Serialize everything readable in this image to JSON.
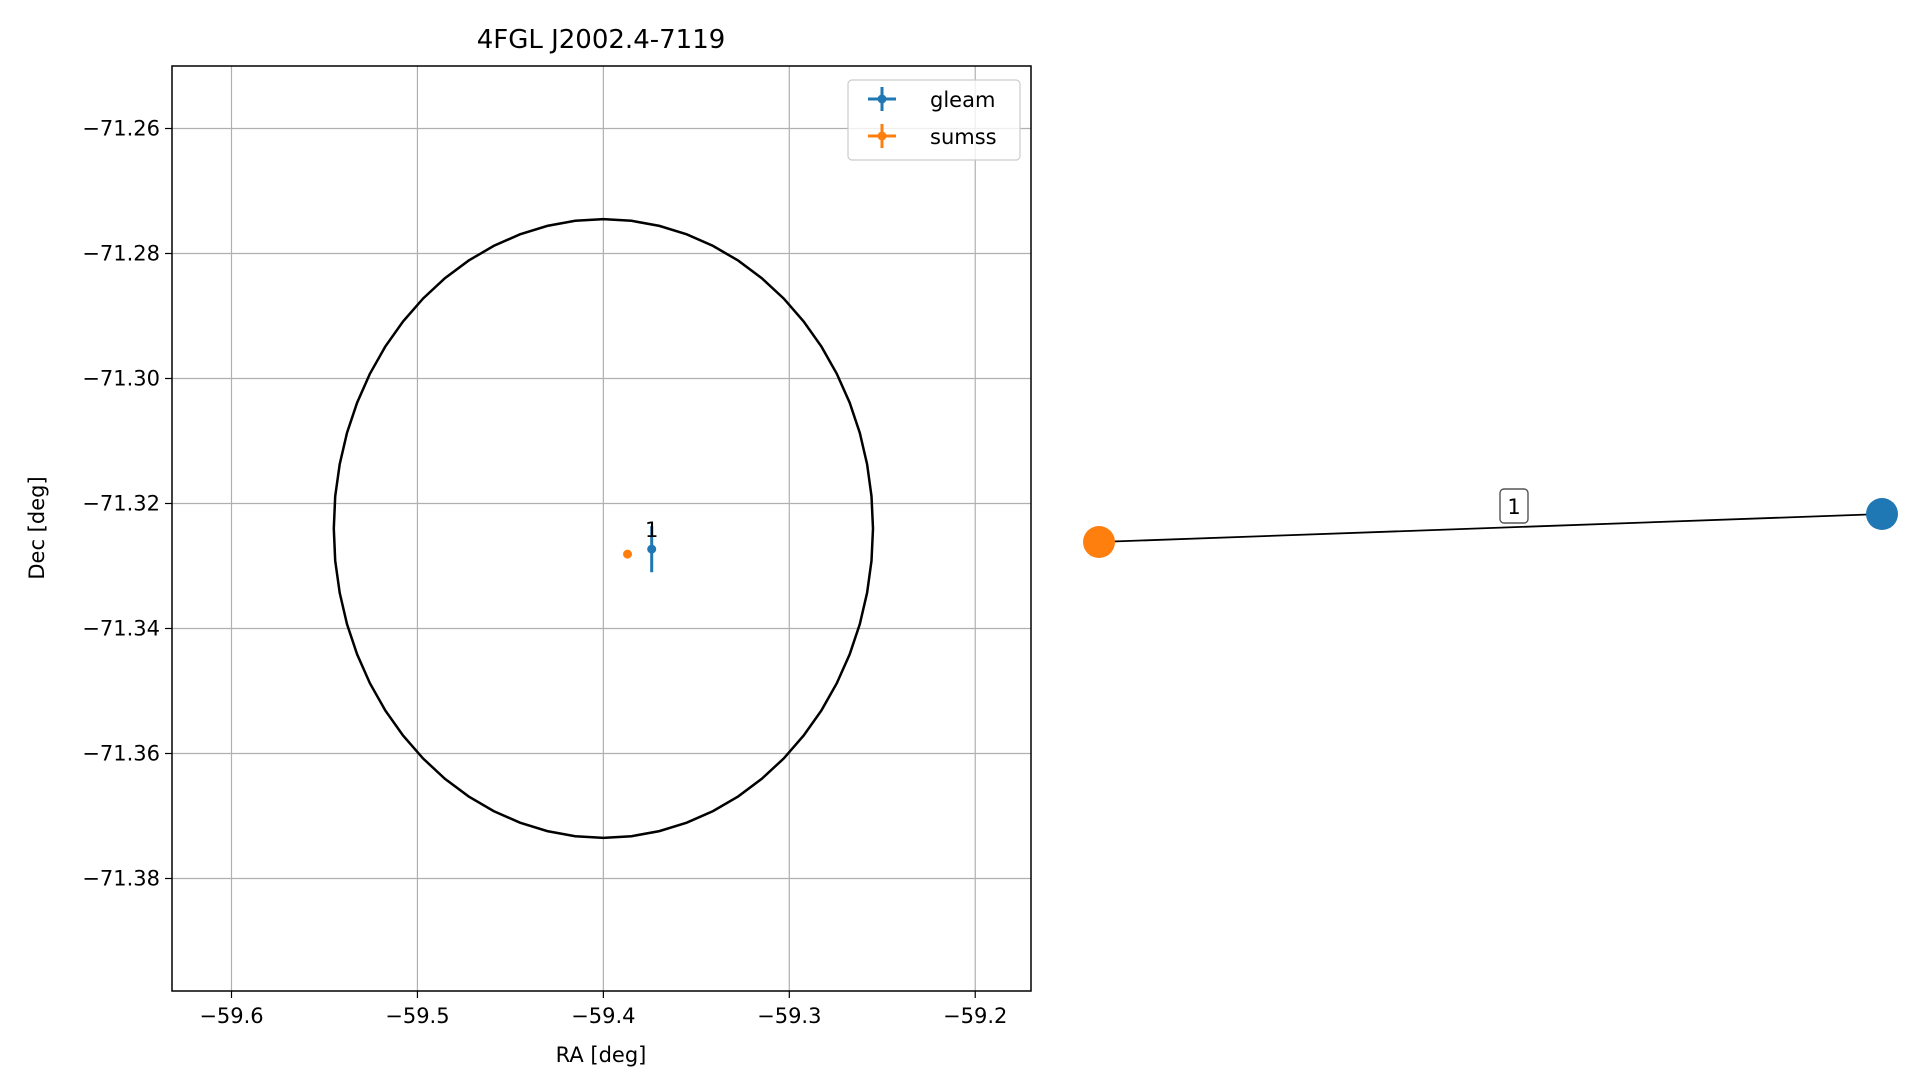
{
  "chart_data": [
    {
      "type": "scatter",
      "title": "4FGL J2002.4-7119",
      "xlabel": "RA [deg]",
      "ylabel": "Dec [deg]",
      "xlim": [
        -59.632,
        -59.17
      ],
      "ylim": [
        -71.398,
        -71.25
      ],
      "grid": true,
      "legend_position": "top-right",
      "x_ticks": [
        -59.6,
        -59.5,
        -59.4,
        -59.3,
        -59.2
      ],
      "x_tick_labels": [
        "−59.6",
        "−59.5",
        "−59.4",
        "−59.3",
        "−59.2"
      ],
      "y_ticks": [
        -71.26,
        -71.28,
        -71.3,
        -71.32,
        -71.34,
        -71.36,
        -71.38
      ],
      "y_tick_labels": [
        "−71.26",
        "−71.28",
        "−71.30",
        "−71.32",
        "−71.34",
        "−71.36",
        "−71.38"
      ],
      "ellipse": {
        "center": [
          -59.4,
          -71.324
        ],
        "semi_ra": 0.145,
        "semi_dec": 0.0495,
        "color": "#000000"
      },
      "series": [
        {
          "name": "gleam",
          "color": "#1f77b4",
          "points": [
            {
              "x": -59.374,
              "y": -71.3273,
              "xerr": 0.0,
              "yerr": 0.0037,
              "label": "1"
            }
          ]
        },
        {
          "name": "sumss",
          "color": "#ff7f0e",
          "points": [
            {
              "x": -59.387,
              "y": -71.3281,
              "xerr": 0.0,
              "yerr": 0.0,
              "label": ""
            }
          ]
        }
      ]
    },
    {
      "type": "network",
      "nodes": [
        {
          "id": "sumss",
          "color": "#ff7f0e"
        },
        {
          "id": "gleam",
          "color": "#1f77b4"
        }
      ],
      "edges": [
        {
          "source": "sumss",
          "target": "gleam",
          "label": "1"
        }
      ]
    }
  ]
}
